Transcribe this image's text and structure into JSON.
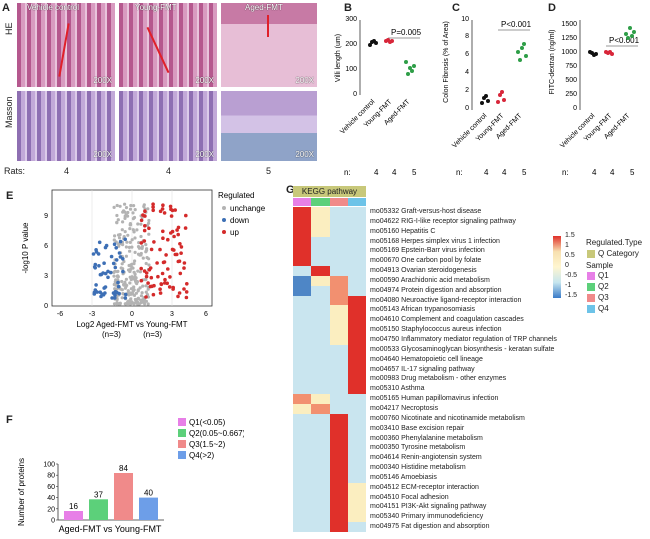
{
  "panel_letters": {
    "a": "A",
    "b": "B",
    "c": "C",
    "d": "D",
    "e": "E",
    "f": "F",
    "g": "G"
  },
  "panel_a": {
    "col_titles": [
      "Vehicle control",
      "Young-FMT",
      "Aged-FMT"
    ],
    "row_labels": [
      "HE",
      "Masson"
    ],
    "magnification": "200X",
    "rats_label": "Rats:",
    "rats": [
      "4",
      "4",
      "5"
    ]
  },
  "panel_b": {
    "ylabel": "Villi length (um)",
    "groups": [
      "Vehicle control",
      "Young-FMT",
      "Aged-FMT"
    ],
    "n_label": "n:",
    "n": [
      "4",
      "4",
      "5"
    ],
    "p": "P=0.005",
    "yticks": [
      "0",
      "100",
      "200",
      "300"
    ]
  },
  "panel_c": {
    "ylabel": "Colon Fibrosis (% of Area)",
    "groups": [
      "Vehicle control",
      "Young-FMT",
      "Aged-FMT"
    ],
    "n_label": "n:",
    "n": [
      "4",
      "4",
      "5"
    ],
    "p": "P<0.001",
    "yticks": [
      "0",
      "2",
      "4",
      "6",
      "8",
      "10"
    ]
  },
  "panel_d": {
    "ylabel": "FITC-dextran (ng/ml)",
    "groups": [
      "Vehicle control",
      "Young-FMT",
      "Aged-FMT"
    ],
    "n_label": "n:",
    "n": [
      "4",
      "4",
      "5"
    ],
    "p": "P<0.001",
    "yticks": [
      "0",
      "250",
      "500",
      "750",
      "1000",
      "1250",
      "1500"
    ]
  },
  "panel_e": {
    "legend_title": "Regulated",
    "legend": [
      "unchange",
      "down",
      "up"
    ],
    "colors": [
      "#b3b3b3",
      "#3d6fb5",
      "#d42a2a"
    ],
    "ylabel": "-log10 P value",
    "xlabel": "Log2 Aged-FMT vs Young-FMT",
    "xsub": "(n=3)          (n=3)",
    "xticks": [
      "-6",
      "-3",
      "0",
      "3",
      "6"
    ],
    "yticks": [
      "0",
      "3",
      "6",
      "9"
    ]
  },
  "chart_data": {
    "type": "bar",
    "title": "",
    "ylabel": "Number of proteins",
    "xlabel": "Aged-FMT vs Young-FMT",
    "categories": [
      "Q1(<0.05)",
      "Q2(0.05~0.667)",
      "Q3(1.5~2)",
      "Q4(>2)"
    ],
    "values": [
      16,
      37,
      84,
      40
    ],
    "colors": [
      "#e77fe7",
      "#5cd07a",
      "#f08a8a",
      "#6d9ee8"
    ],
    "yticks": [
      "0",
      "20",
      "40",
      "60",
      "80",
      "100"
    ],
    "ylim": [
      0,
      100
    ]
  },
  "panel_g": {
    "title": "KEGG pathway",
    "legend_title": "Regulated.Type",
    "q_label": "Q Category",
    "sample_label": "Sample",
    "samples": [
      "Q1",
      "Q2",
      "Q3",
      "Q4"
    ],
    "sample_colors": [
      "#e77fe7",
      "#5cd07a",
      "#f08a8a",
      "#6dc3e8"
    ],
    "scale": [
      "1.5",
      "1",
      "0.5",
      "0",
      "-0.5",
      "-1",
      "-1.5"
    ],
    "pathways": [
      "mo05332 Graft-versus-host disease",
      "mo04622 RIG-I-like receptor signaling pathway",
      "mo05160 Hepatitis C",
      "mo05168 Herpes simplex virus 1 infection",
      "mo05169 Epstein-Barr virus infection",
      "mo00670 One carbon pool by folate",
      "mo04913 Ovarian steroidogenesis",
      "mo00590 Arachidonic acid metabolism",
      "mo04974 Protein digestion and absorption",
      "mo04080 Neuroactive ligand-receptor interaction",
      "mo05143 African trypanosomiasis",
      "mo04610 Complement and coagulation cascades",
      "mo05150 Staphylococcus aureus infection",
      "mo04750 Inflammatory mediator regulation of TRP channels",
      "mo00533 Glycosaminoglycan biosynthesis - keratan sulfate",
      "mo04640 Hematopoietic cell lineage",
      "mo04657 IL-17 signaling pathway",
      "mo00983 Drug metabolism - other enzymes",
      "mo05310 Asthma",
      "mo05165 Human papillomavirus infection",
      "mo04217 Necroptosis",
      "mo00760 Nicotinate and nicotinamide metabolism",
      "mo03410 Base excision repair",
      "mo00360 Phenylalanine metabolism",
      "mo00350 Tyrosine metabolism",
      "mo04614 Renin-angiotensin system",
      "mo00340 Histidine metabolism",
      "mo05146 Amoebiasis",
      "mo04512 ECM-receptor interaction",
      "mo04510 Focal adhesion",
      "mo04151 PI3K-Akt signaling pathway",
      "mo05340 Primary immunodeficiency",
      "mo04975 Fat digestion and absorption"
    ]
  }
}
